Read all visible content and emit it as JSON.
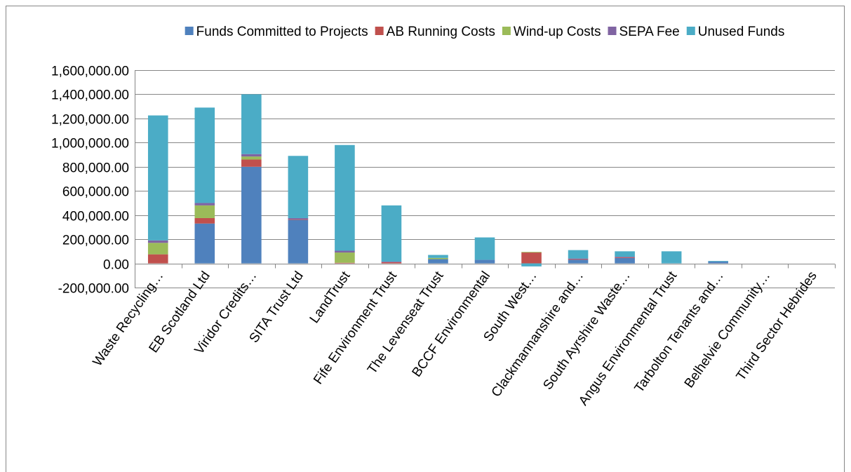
{
  "chart_data": {
    "type": "stacked_bar",
    "categories": [
      "Waste Recycling…",
      "EB Scotland Ltd",
      "Viridor Credits…",
      "SITA Trust Ltd",
      "LandTrust",
      "Fife Environment Trust",
      "The Levenseat Trust",
      "BCCF Environmental",
      "South West…",
      "Clackmannanshire and…",
      "South Ayrshire Waste…",
      "Angus Environmental Trust",
      "Tarbolton Tenants and…",
      "Belhelvie Community…",
      "Third Sector Hebrides"
    ],
    "series": [
      {
        "name": "Funds Committed to Projects",
        "color": "#4f81bd",
        "values": [
          0,
          330000,
          800000,
          360000,
          0,
          0,
          35000,
          30000,
          0,
          30000,
          45000,
          0,
          15000,
          0,
          0
        ]
      },
      {
        "name": "AB Running Costs",
        "color": "#c0504d",
        "values": [
          75000,
          45000,
          60000,
          5000,
          5000,
          10000,
          0,
          0,
          90000,
          5000,
          5000,
          0,
          0,
          0,
          0
        ]
      },
      {
        "name": "Wind-up Costs",
        "color": "#9bbb59",
        "values": [
          95000,
          105000,
          25000,
          0,
          85000,
          0,
          10000,
          0,
          5000,
          0,
          0,
          0,
          0,
          0,
          0
        ]
      },
      {
        "name": "SEPA Fee",
        "color": "#8064a2",
        "values": [
          20000,
          20000,
          20000,
          10000,
          15000,
          5000,
          0,
          0,
          0,
          5000,
          5000,
          0,
          0,
          0,
          0
        ]
      },
      {
        "name": "Unused Funds",
        "color": "#4bacc6",
        "values": [
          1035000,
          790000,
          495000,
          515000,
          875000,
          465000,
          25000,
          185000,
          -25000,
          70000,
          45000,
          100000,
          5000,
          0,
          0
        ]
      }
    ],
    "ylim": [
      -200000,
      1600000
    ],
    "yticks": [
      {
        "value": -200000,
        "label": "-200,000.00"
      },
      {
        "value": 0,
        "label": "0.00"
      },
      {
        "value": 200000,
        "label": "200,000.00"
      },
      {
        "value": 400000,
        "label": "400,000.00"
      },
      {
        "value": 600000,
        "label": "600,000.00"
      },
      {
        "value": 800000,
        "label": "800,000.00"
      },
      {
        "value": 1000000,
        "label": "1,000,000.00"
      },
      {
        "value": 1200000,
        "label": "1,200,000.00"
      },
      {
        "value": 1400000,
        "label": "1,400,000.00"
      },
      {
        "value": 1600000,
        "label": "1,600,000.00"
      }
    ],
    "grid": true,
    "legend": "top"
  }
}
